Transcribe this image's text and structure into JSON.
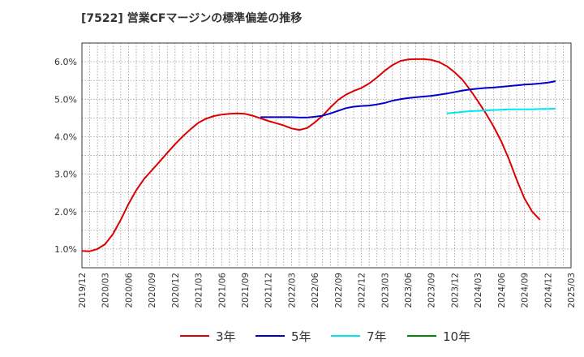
{
  "title": "[7522]  営業CFマージンの標準偏差の推移",
  "colors": {
    "3y": "#dd0000",
    "5y": "#0000cc",
    "7y": "#00e5ee",
    "10y": "#008800"
  },
  "chart_data": {
    "type": "line",
    "title": "[7522]  営業CFマージンの標準偏差の推移",
    "xlabel": "",
    "ylabel": "",
    "ylim": [
      0.5,
      6.5
    ],
    "xlim": [
      "2019-12",
      "2025-03"
    ],
    "yticks": [
      1.0,
      2.0,
      3.0,
      4.0,
      5.0,
      6.0
    ],
    "ytick_labels": [
      "1.0%",
      "2.0%",
      "3.0%",
      "4.0%",
      "5.0%",
      "6.0%"
    ],
    "xtick_labels": [
      "2019/12",
      "2020/03",
      "2020/06",
      "2020/09",
      "2020/12",
      "2021/03",
      "2021/06",
      "2021/09",
      "2021/12",
      "2022/03",
      "2022/06",
      "2022/09",
      "2022/12",
      "2023/03",
      "2023/06",
      "2023/09",
      "2023/12",
      "2024/03",
      "2024/06",
      "2024/09",
      "2024/12",
      "2025/03"
    ],
    "grid": true,
    "legend_position": "bottom",
    "series": [
      {
        "name": "3年",
        "color": "#dd0000",
        "start": "2019-12",
        "values": [
          0.95,
          0.94,
          1.0,
          1.13,
          1.4,
          1.78,
          2.2,
          2.57,
          2.87,
          3.1,
          3.33,
          3.57,
          3.8,
          4.01,
          4.2,
          4.37,
          4.48,
          4.55,
          4.59,
          4.61,
          4.62,
          4.61,
          4.56,
          4.49,
          4.42,
          4.36,
          4.3,
          4.22,
          4.18,
          4.23,
          4.38,
          4.56,
          4.78,
          4.98,
          5.12,
          5.22,
          5.3,
          5.42,
          5.58,
          5.76,
          5.91,
          6.02,
          6.06,
          6.07,
          6.07,
          6.05,
          5.99,
          5.88,
          5.72,
          5.52,
          5.25,
          4.95,
          4.63,
          4.28,
          3.88,
          3.4,
          2.85,
          2.35,
          2.0,
          1.78
        ]
      },
      {
        "name": "5年",
        "color": "#0000cc",
        "start": "2021-11",
        "values": [
          4.52,
          4.52,
          4.52,
          4.52,
          4.52,
          4.51,
          4.51,
          4.53,
          4.56,
          4.62,
          4.69,
          4.76,
          4.8,
          4.82,
          4.83,
          4.86,
          4.9,
          4.96,
          5.0,
          5.03,
          5.05,
          5.07,
          5.09,
          5.12,
          5.15,
          5.19,
          5.23,
          5.26,
          5.28,
          5.3,
          5.31,
          5.33,
          5.35,
          5.37,
          5.39,
          5.4,
          5.42,
          5.44,
          5.48
        ]
      },
      {
        "name": "7年",
        "color": "#00e5ee",
        "start": "2023-11",
        "values": [
          4.62,
          4.64,
          4.66,
          4.68,
          4.69,
          4.7,
          4.71,
          4.72,
          4.73,
          4.73,
          4.73,
          4.73,
          4.74,
          4.74,
          4.75
        ]
      },
      {
        "name": "10年",
        "color": "#008800",
        "start": "2019-12",
        "values": []
      }
    ]
  }
}
